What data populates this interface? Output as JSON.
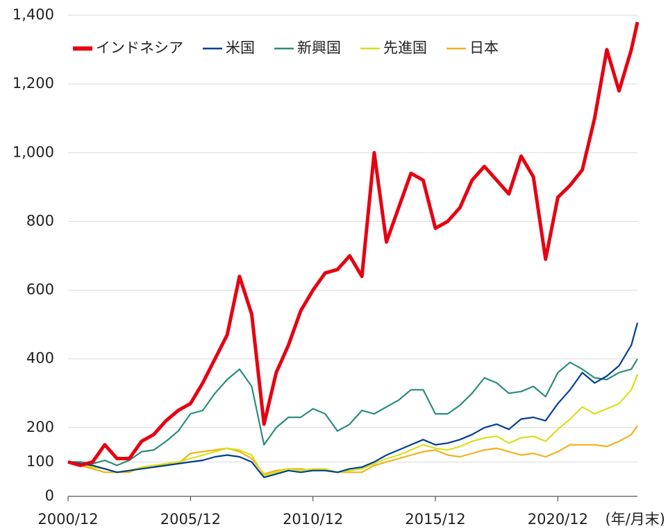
{
  "chart_data": {
    "type": "line",
    "x": [
      "2000/12",
      "2001/06",
      "2001/12",
      "2002/06",
      "2002/12",
      "2003/06",
      "2003/12",
      "2004/06",
      "2004/12",
      "2005/06",
      "2005/12",
      "2006/06",
      "2006/12",
      "2007/06",
      "2007/12",
      "2008/06",
      "2008/12",
      "2009/06",
      "2009/12",
      "2010/06",
      "2010/12",
      "2011/06",
      "2011/12",
      "2012/06",
      "2012/12",
      "2013/06",
      "2013/12",
      "2014/06",
      "2014/12",
      "2015/06",
      "2015/12",
      "2016/06",
      "2016/12",
      "2017/06",
      "2017/12",
      "2018/06",
      "2018/12",
      "2019/06",
      "2019/12",
      "2020/06",
      "2020/12",
      "2021/06",
      "2021/12",
      "2022/06",
      "2022/12",
      "2023/06",
      "2023/12",
      "2024/03"
    ],
    "xlabel": "(年/月末)",
    "xlim": [
      "2000/12",
      "2024/03"
    ],
    "xticks": [
      "2000/12",
      "2005/12",
      "2010/12",
      "2015/12",
      "2020/12"
    ],
    "ylim": [
      0,
      1400
    ],
    "yticks": [
      0,
      100,
      200,
      400,
      600,
      800,
      {
        "value": 1000,
        "label": "1,000"
      },
      {
        "value": 1200,
        "label": "1,200"
      },
      {
        "value": 1400,
        "label": "1,400"
      }
    ],
    "grid": true,
    "legend": "top-left",
    "series": [
      {
        "name": "インドネシア",
        "color": "#e60012",
        "values": [
          100,
          90,
          100,
          150,
          110,
          110,
          160,
          180,
          220,
          250,
          270,
          330,
          400,
          470,
          640,
          530,
          210,
          360,
          440,
          540,
          600,
          650,
          660,
          700,
          640,
          1000,
          740,
          840,
          940,
          920,
          780,
          800,
          840,
          920,
          960,
          920,
          880,
          990,
          930,
          690,
          870,
          905,
          950,
          1100,
          1300,
          1180,
          1300,
          1380
        ]
      },
      {
        "name": "米国",
        "color": "#003e92",
        "values": [
          100,
          95,
          90,
          80,
          70,
          75,
          80,
          85,
          90,
          95,
          100,
          105,
          115,
          120,
          115,
          100,
          55,
          65,
          75,
          70,
          75,
          75,
          70,
          80,
          85,
          100,
          120,
          135,
          150,
          165,
          150,
          155,
          165,
          180,
          200,
          210,
          195,
          225,
          230,
          220,
          270,
          310,
          360,
          330,
          350,
          380,
          440,
          505
        ]
      },
      {
        "name": "新興国",
        "color": "#2a8c7a",
        "values": [
          100,
          100,
          95,
          105,
          90,
          105,
          130,
          135,
          160,
          190,
          240,
          250,
          300,
          340,
          370,
          320,
          150,
          200,
          230,
          230,
          255,
          240,
          190,
          210,
          250,
          240,
          260,
          280,
          310,
          310,
          240,
          240,
          265,
          300,
          345,
          330,
          300,
          305,
          320,
          290,
          360,
          390,
          370,
          345,
          340,
          360,
          370,
          400
        ]
      },
      {
        "name": "先進国",
        "color": "#d7e01a",
        "values": [
          100,
          95,
          85,
          80,
          70,
          75,
          85,
          90,
          95,
          100,
          110,
          120,
          130,
          140,
          135,
          120,
          60,
          70,
          80,
          75,
          80,
          80,
          70,
          75,
          80,
          95,
          110,
          120,
          135,
          150,
          140,
          135,
          145,
          160,
          170,
          175,
          155,
          170,
          175,
          160,
          195,
          225,
          260,
          240,
          255,
          270,
          310,
          355
        ]
      },
      {
        "name": "日本",
        "color": "#f2b21a",
        "values": [
          100,
          90,
          80,
          70,
          70,
          70,
          85,
          90,
          90,
          95,
          125,
          130,
          135,
          140,
          130,
          110,
          65,
          75,
          80,
          80,
          75,
          75,
          70,
          70,
          70,
          90,
          100,
          110,
          120,
          130,
          135,
          120,
          115,
          125,
          135,
          140,
          130,
          120,
          125,
          115,
          130,
          150,
          150,
          150,
          145,
          160,
          180,
          205
        ]
      }
    ]
  }
}
